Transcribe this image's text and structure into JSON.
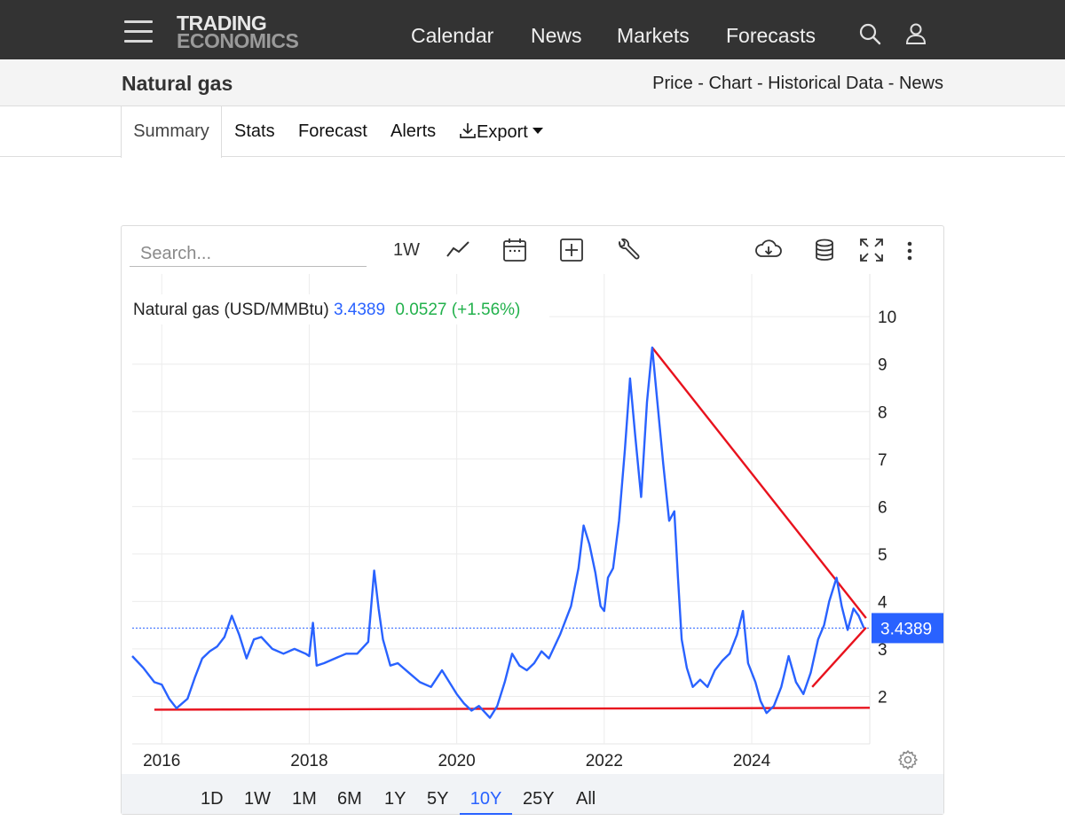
{
  "nav": {
    "logo_line1": "TRADING",
    "logo_line2": "ECONOMICS",
    "links": [
      "Calendar",
      "News",
      "Markets",
      "Forecasts"
    ]
  },
  "page": {
    "title": "Natural gas",
    "breadcrumbs": "Price - Chart - Historical Data - News"
  },
  "tabs": {
    "summary": "Summary",
    "stats": "Stats",
    "forecast": "Forecast",
    "alerts": "Alerts",
    "export": "Export"
  },
  "toolbar": {
    "search_placeholder": "Search...",
    "interval": "1W"
  },
  "legend": {
    "name": "Natural gas (USD/MMBtu)",
    "price": "3.4389",
    "change": "0.0527",
    "change_pct": "(+1.56%)"
  },
  "last_price_label": "3.4389",
  "ranges": [
    "1D",
    "1W",
    "1M",
    "6M",
    "1Y",
    "5Y",
    "10Y",
    "25Y",
    "All"
  ],
  "active_range": "10Y",
  "colors": {
    "series": "#2962ff",
    "trendline": "#e8121d",
    "change_positive": "#22b14c",
    "nav_bg": "#333333"
  },
  "chart_data": {
    "type": "line",
    "title": "Natural gas (USD/MMBtu)",
    "xlabel": "",
    "ylabel": "",
    "x_ticks": [
      "2016",
      "2018",
      "2020",
      "2022",
      "2024"
    ],
    "y_ticks": [
      2,
      3,
      4,
      5,
      6,
      7,
      8,
      9,
      10
    ],
    "xlim": [
      2015.6,
      2025.6
    ],
    "ylim": [
      1.0,
      10.9
    ],
    "grid": true,
    "series": [
      {
        "name": "Natural gas",
        "points": [
          [
            2015.6,
            2.85
          ],
          [
            2015.75,
            2.6
          ],
          [
            2015.9,
            2.3
          ],
          [
            2016.0,
            2.25
          ],
          [
            2016.1,
            1.95
          ],
          [
            2016.2,
            1.75
          ],
          [
            2016.35,
            1.95
          ],
          [
            2016.45,
            2.4
          ],
          [
            2016.55,
            2.8
          ],
          [
            2016.65,
            2.95
          ],
          [
            2016.75,
            3.05
          ],
          [
            2016.85,
            3.25
          ],
          [
            2016.95,
            3.7
          ],
          [
            2017.05,
            3.3
          ],
          [
            2017.15,
            2.8
          ],
          [
            2017.25,
            3.2
          ],
          [
            2017.35,
            3.25
          ],
          [
            2017.5,
            3.0
          ],
          [
            2017.65,
            2.9
          ],
          [
            2017.8,
            3.0
          ],
          [
            2017.95,
            2.9
          ],
          [
            2018.0,
            2.85
          ],
          [
            2018.05,
            3.55
          ],
          [
            2018.1,
            2.65
          ],
          [
            2018.2,
            2.7
          ],
          [
            2018.35,
            2.8
          ],
          [
            2018.5,
            2.9
          ],
          [
            2018.65,
            2.9
          ],
          [
            2018.8,
            3.15
          ],
          [
            2018.88,
            4.65
          ],
          [
            2018.94,
            3.85
          ],
          [
            2019.0,
            3.2
          ],
          [
            2019.1,
            2.65
          ],
          [
            2019.2,
            2.7
          ],
          [
            2019.35,
            2.5
          ],
          [
            2019.5,
            2.3
          ],
          [
            2019.65,
            2.2
          ],
          [
            2019.8,
            2.55
          ],
          [
            2019.9,
            2.3
          ],
          [
            2020.0,
            2.05
          ],
          [
            2020.1,
            1.85
          ],
          [
            2020.2,
            1.7
          ],
          [
            2020.3,
            1.8
          ],
          [
            2020.45,
            1.55
          ],
          [
            2020.55,
            1.8
          ],
          [
            2020.65,
            2.3
          ],
          [
            2020.75,
            2.9
          ],
          [
            2020.85,
            2.65
          ],
          [
            2020.95,
            2.55
          ],
          [
            2021.05,
            2.7
          ],
          [
            2021.15,
            2.95
          ],
          [
            2021.25,
            2.8
          ],
          [
            2021.4,
            3.3
          ],
          [
            2021.55,
            3.9
          ],
          [
            2021.65,
            4.7
          ],
          [
            2021.72,
            5.6
          ],
          [
            2021.8,
            5.2
          ],
          [
            2021.88,
            4.6
          ],
          [
            2021.95,
            3.9
          ],
          [
            2022.0,
            3.8
          ],
          [
            2022.05,
            4.5
          ],
          [
            2022.12,
            4.7
          ],
          [
            2022.2,
            5.7
          ],
          [
            2022.28,
            7.2
          ],
          [
            2022.35,
            8.7
          ],
          [
            2022.42,
            7.5
          ],
          [
            2022.5,
            6.2
          ],
          [
            2022.58,
            8.2
          ],
          [
            2022.65,
            9.35
          ],
          [
            2022.72,
            8.2
          ],
          [
            2022.8,
            6.9
          ],
          [
            2022.88,
            5.7
          ],
          [
            2022.95,
            5.9
          ],
          [
            2023.0,
            4.5
          ],
          [
            2023.05,
            3.2
          ],
          [
            2023.12,
            2.6
          ],
          [
            2023.2,
            2.2
          ],
          [
            2023.3,
            2.35
          ],
          [
            2023.4,
            2.2
          ],
          [
            2023.5,
            2.55
          ],
          [
            2023.6,
            2.75
          ],
          [
            2023.7,
            2.9
          ],
          [
            2023.8,
            3.3
          ],
          [
            2023.88,
            3.8
          ],
          [
            2023.95,
            2.7
          ],
          [
            2024.05,
            2.3
          ],
          [
            2024.12,
            1.9
          ],
          [
            2024.2,
            1.65
          ],
          [
            2024.3,
            1.8
          ],
          [
            2024.4,
            2.2
          ],
          [
            2024.5,
            2.85
          ],
          [
            2024.6,
            2.3
          ],
          [
            2024.7,
            2.05
          ],
          [
            2024.8,
            2.5
          ],
          [
            2024.9,
            3.2
          ],
          [
            2024.98,
            3.5
          ],
          [
            2025.05,
            4.0
          ],
          [
            2025.15,
            4.5
          ],
          [
            2025.22,
            3.9
          ],
          [
            2025.3,
            3.4
          ],
          [
            2025.38,
            3.85
          ],
          [
            2025.45,
            3.7
          ],
          [
            2025.52,
            3.4389
          ]
        ]
      }
    ],
    "last_value": 3.4389,
    "last_value_line": "dotted",
    "trendlines": [
      {
        "from": [
          2015.9,
          1.72
        ],
        "to": [
          2025.6,
          1.76
        ]
      },
      {
        "from": [
          2022.65,
          9.35
        ],
        "to": [
          2025.55,
          3.65
        ]
      },
      {
        "from": [
          2024.82,
          2.2
        ],
        "to": [
          2025.55,
          3.45
        ]
      }
    ]
  }
}
